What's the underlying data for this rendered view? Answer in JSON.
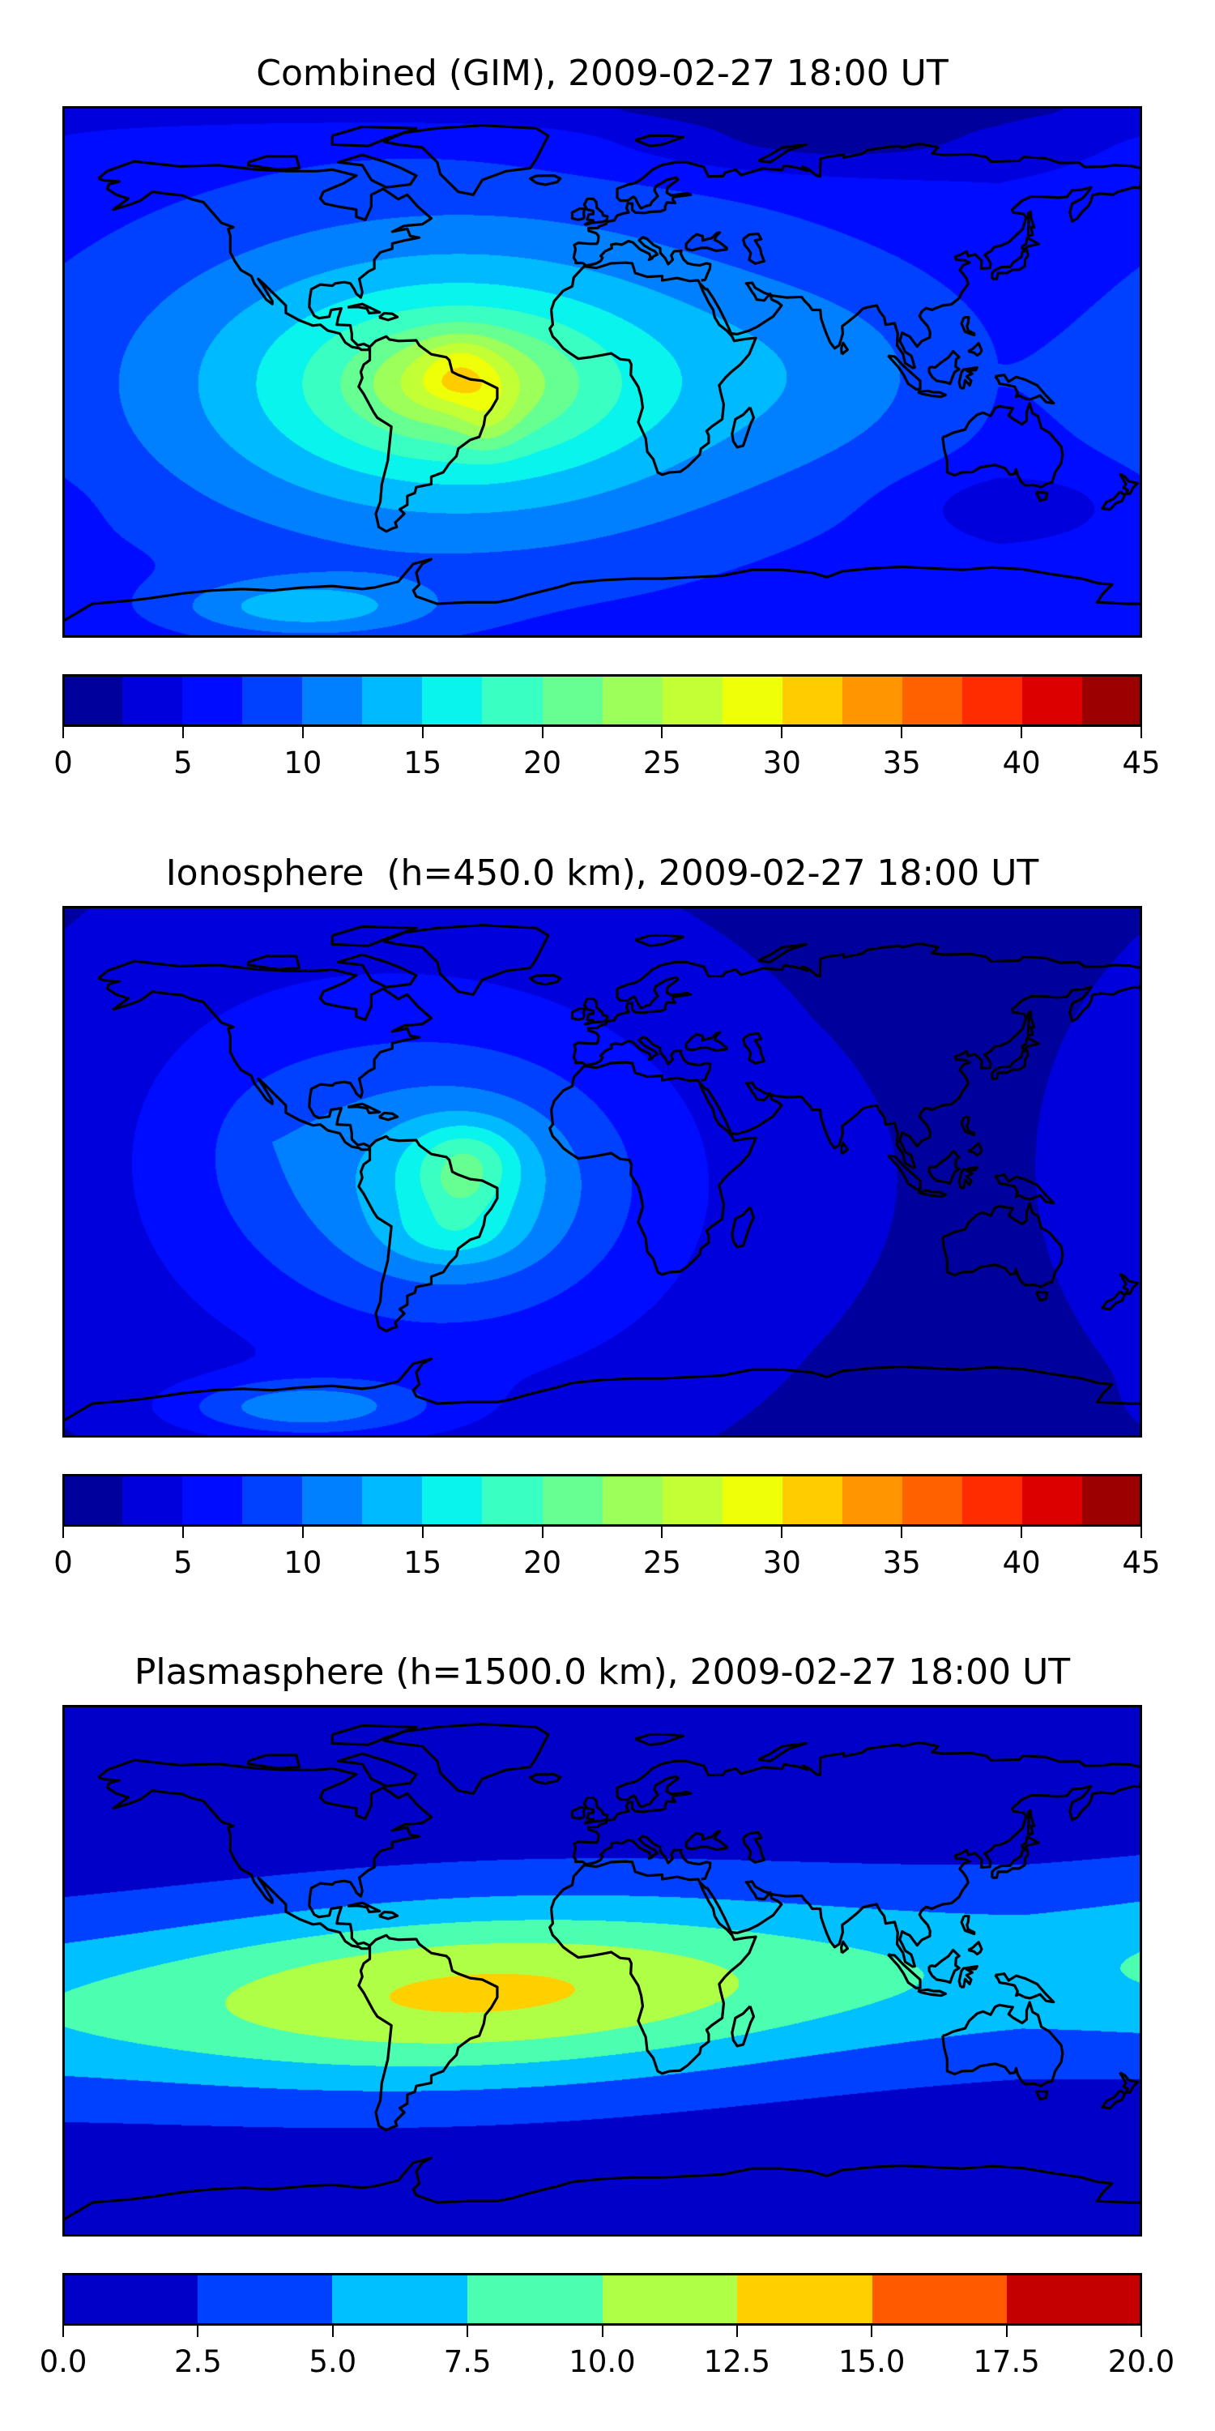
{
  "chart_data": [
    {
      "type": "heatmap",
      "title": "Combined (GIM), 2009-02-27 18:00 UT",
      "xlabel": "",
      "ylabel": "",
      "lon_range": [
        -180,
        180
      ],
      "lat_range": [
        -90,
        90
      ],
      "colorbar": {
        "levels": [
          0,
          2.5,
          5,
          7.5,
          10,
          12.5,
          15,
          17.5,
          20,
          22.5,
          25,
          27.5,
          30,
          32.5,
          35,
          37.5,
          40,
          42.5,
          45
        ],
        "tick_values": [
          0,
          5,
          10,
          15,
          20,
          25,
          30,
          35,
          40,
          45
        ],
        "tick_labels": [
          "0",
          "5",
          "10",
          "15",
          "20",
          "25",
          "30",
          "35",
          "40",
          "45"
        ],
        "colors": [
          "#00009c",
          "#0000dc",
          "#000cff",
          "#0040ff",
          "#0080ff",
          "#00baff",
          "#08f4ec",
          "#3affc2",
          "#66ff91",
          "#9cff5a",
          "#c2ff34",
          "#eeff08",
          "#ffcc00",
          "#ff9500",
          "#ff6000",
          "#ff2c00",
          "#dc0000",
          "#9c0000"
        ]
      },
      "field_model": {
        "base": 4,
        "blobs": [
          {
            "shape": "exp",
            "lon": -48,
            "lat": -4,
            "amp": 27,
            "sx": 75,
            "sy": 38
          },
          {
            "shape": "gauss",
            "lon": -47,
            "lat": 5,
            "amp": 3,
            "sx": 9,
            "sy": 6
          },
          {
            "shape": "gauss",
            "lon": -38,
            "lat": -16,
            "amp": 3,
            "sx": 7,
            "sy": 8
          },
          {
            "shape": "gauss",
            "lon": -100,
            "lat": -80,
            "amp": 7,
            "sx": 30,
            "sy": 7
          },
          {
            "shape": "gauss",
            "lon": 80,
            "lat": 0,
            "amp": 2.5,
            "sx": 40,
            "sy": 25
          },
          {
            "shape": "gauss",
            "lon": 140,
            "lat": -45,
            "amp": -3,
            "sx": 25,
            "sy": 8
          },
          {
            "shape": "gauss",
            "lon": 70,
            "lat": 78,
            "amp": -4,
            "sx": 50,
            "sy": 8
          },
          {
            "shape": "gauss",
            "lon": 0,
            "lat": 90,
            "amp": -3,
            "sx": 200,
            "sy": 5
          }
        ]
      }
    },
    {
      "type": "heatmap",
      "title": "Ionosphere  (h=450.0 km), 2009-02-27 18:00 UT",
      "xlabel": "",
      "ylabel": "",
      "lon_range": [
        -180,
        180
      ],
      "lat_range": [
        -90,
        90
      ],
      "colorbar": {
        "levels": [
          0,
          2.5,
          5,
          7.5,
          10,
          12.5,
          15,
          17.5,
          20,
          22.5,
          25,
          27.5,
          30,
          32.5,
          35,
          37.5,
          40,
          42.5,
          45
        ],
        "tick_values": [
          0,
          5,
          10,
          15,
          20,
          25,
          30,
          35,
          40,
          45
        ],
        "tick_labels": [
          "0",
          "5",
          "10",
          "15",
          "20",
          "25",
          "30",
          "35",
          "40",
          "45"
        ],
        "colors": [
          "#00009c",
          "#0000dc",
          "#000cff",
          "#0040ff",
          "#0080ff",
          "#00baff",
          "#08f4ec",
          "#3affc2",
          "#66ff91",
          "#9cff5a",
          "#c2ff34",
          "#eeff08",
          "#ffcc00",
          "#ff9500",
          "#ff6000",
          "#ff2c00",
          "#dc0000",
          "#9c0000"
        ]
      },
      "field_model": {
        "base": 1.2,
        "blobs": [
          {
            "shape": "exp",
            "lon": -47,
            "lat": -5,
            "amp": 18,
            "sx": 50,
            "sy": 38
          },
          {
            "shape": "gauss",
            "lon": -45,
            "lat": 6,
            "amp": 4,
            "sx": 12,
            "sy": 8
          },
          {
            "shape": "gauss",
            "lon": -50,
            "lat": -22,
            "amp": 3,
            "sx": 15,
            "sy": 7
          },
          {
            "shape": "gauss",
            "lon": -100,
            "lat": -80,
            "amp": 8,
            "sx": 30,
            "sy": 7
          },
          {
            "shape": "exp",
            "lon": -110,
            "lat": 10,
            "amp": 4,
            "sx": 60,
            "sy": 60
          }
        ]
      }
    },
    {
      "type": "heatmap",
      "title": "Plasmasphere (h=1500.0 km), 2009-02-27 18:00 UT",
      "xlabel": "",
      "ylabel": "",
      "lon_range": [
        -180,
        180
      ],
      "lat_range": [
        -90,
        90
      ],
      "colorbar": {
        "levels": [
          0,
          2.5,
          5,
          7.5,
          10,
          12.5,
          15,
          17.5,
          20
        ],
        "tick_values": [
          0,
          2.5,
          5,
          7.5,
          10,
          12.5,
          15,
          17.5,
          20
        ],
        "tick_labels": [
          "0.0",
          "2.5",
          "5.0",
          "7.5",
          "10.0",
          "12.5",
          "15.0",
          "17.5",
          "20.0"
        ],
        "colors": [
          "#0000c8",
          "#0040ff",
          "#00c0ff",
          "#4cffb0",
          "#b0ff47",
          "#ffd000",
          "#ff5a00",
          "#c40000"
        ]
      },
      "field_model": {
        "band": {
          "base": 1,
          "amp": 12,
          "lat0": -6,
          "lat_tilt": 0.04,
          "lat_sigma": 22,
          "lon0": -40,
          "lon_sigma": 110,
          "lon_floor": 0.45
        }
      }
    }
  ]
}
